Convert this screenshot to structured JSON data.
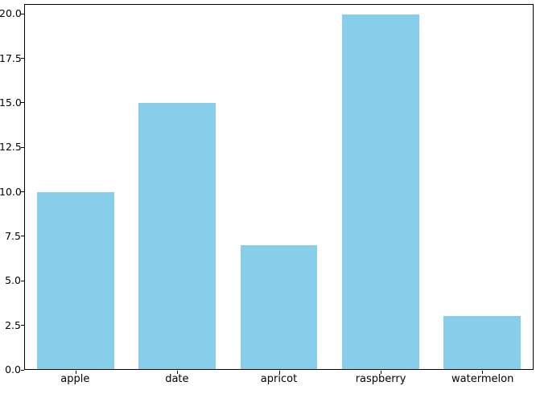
{
  "chart_data": {
    "type": "bar",
    "title": "",
    "xlabel": "",
    "ylabel": "",
    "categories": [
      "apple",
      "date",
      "apricot",
      "raspberry",
      "watermelon"
    ],
    "values": [
      10,
      15,
      7,
      20,
      3
    ],
    "ylim": [
      0,
      20.55
    ],
    "yticks": [
      0,
      2.5,
      5,
      7.5,
      10,
      12.5,
      15,
      17.5,
      20
    ],
    "ytick_labels": [
      "0.0",
      "2.5",
      "5.0",
      "7.5",
      "10.0",
      "12.5",
      "15.0",
      "17.5",
      "20.0"
    ],
    "bar_color": "#87ceeb",
    "spine_color": "#000000",
    "text_color": "#000000",
    "background_color": "#ffffff",
    "grid": false,
    "legend": false
  }
}
